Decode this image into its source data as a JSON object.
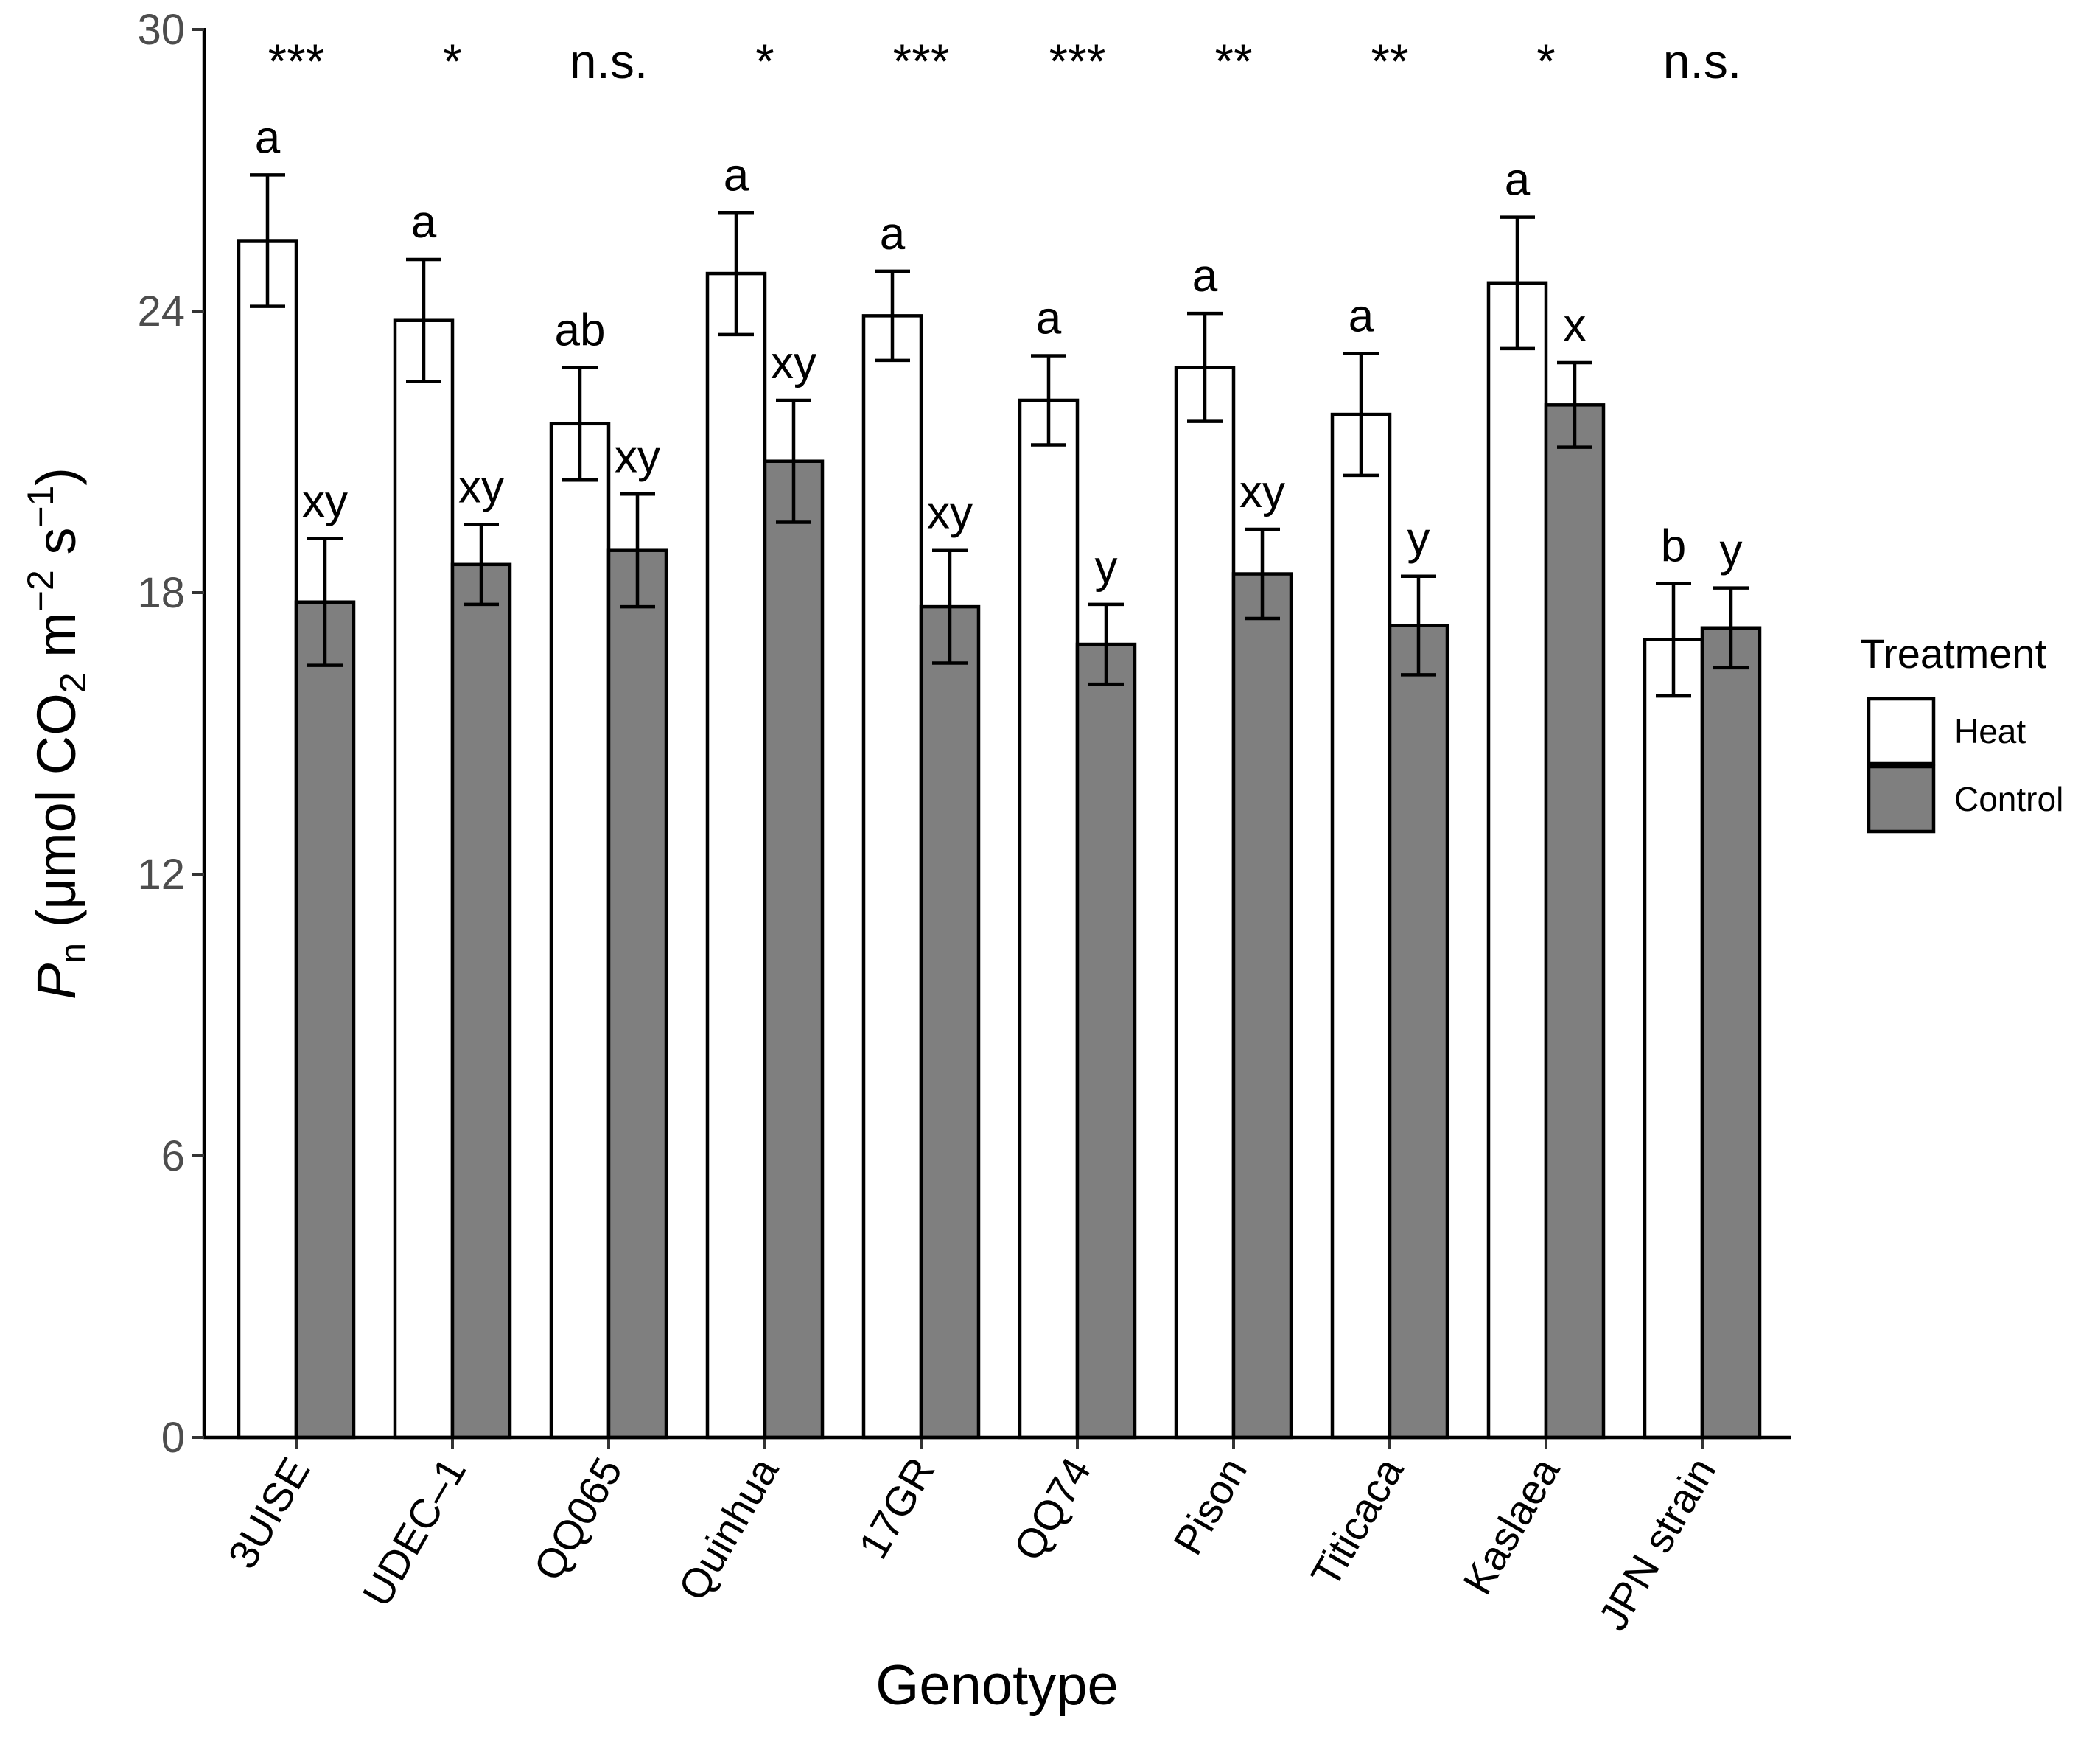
{
  "chart_data": {
    "type": "bar",
    "xlabel": "Genotype",
    "ylabel": {
      "italic_symbol": "P",
      "symbol_subscript": "n",
      "units_prefix": "(μmol CO",
      "co2_subscript": "2",
      "m_text": "m",
      "m_exponent": "−2",
      "s_text": "s",
      "s_exponent": "−1",
      "close": ")"
    },
    "ylim": [
      0,
      30
    ],
    "y_ticks": [
      0,
      6,
      12,
      18,
      24,
      30
    ],
    "categories": [
      "3UISE",
      "UDEC–1",
      "QQ065",
      "Quinhua",
      "17GR",
      "QQ74",
      "Pison",
      "Titicaca",
      "Kaslaea",
      "JPN strain"
    ],
    "series": [
      {
        "name": "Heat",
        "color": "#ffffff",
        "values": [
          25.5,
          23.8,
          21.6,
          24.8,
          23.9,
          22.1,
          22.8,
          21.8,
          24.6,
          17.0
        ],
        "error": [
          1.4,
          1.3,
          1.2,
          1.3,
          0.95,
          0.95,
          1.15,
          1.3,
          1.4,
          1.2
        ],
        "letters": [
          "a",
          "a",
          "ab",
          "a",
          "a",
          "a",
          "a",
          "a",
          "a",
          "b"
        ]
      },
      {
        "name": "Control",
        "color": "#7f7f7f",
        "values": [
          17.8,
          18.6,
          18.9,
          20.8,
          17.7,
          16.9,
          18.4,
          17.3,
          22.0,
          17.25
        ],
        "error": [
          1.35,
          0.85,
          1.2,
          1.3,
          1.2,
          0.85,
          0.95,
          1.05,
          0.9,
          0.85
        ],
        "letters": [
          "xy",
          "xy",
          "xy",
          "xy",
          "xy",
          "y",
          "xy",
          "y",
          "x",
          "y"
        ]
      }
    ],
    "significance": [
      "***",
      "*",
      "n.s.",
      "*",
      "***",
      "***",
      "**",
      "**",
      "*",
      "n.s."
    ],
    "legend": {
      "title": "Treatment",
      "position": "right",
      "entries": [
        "Heat",
        "Control"
      ]
    },
    "grid": false
  }
}
